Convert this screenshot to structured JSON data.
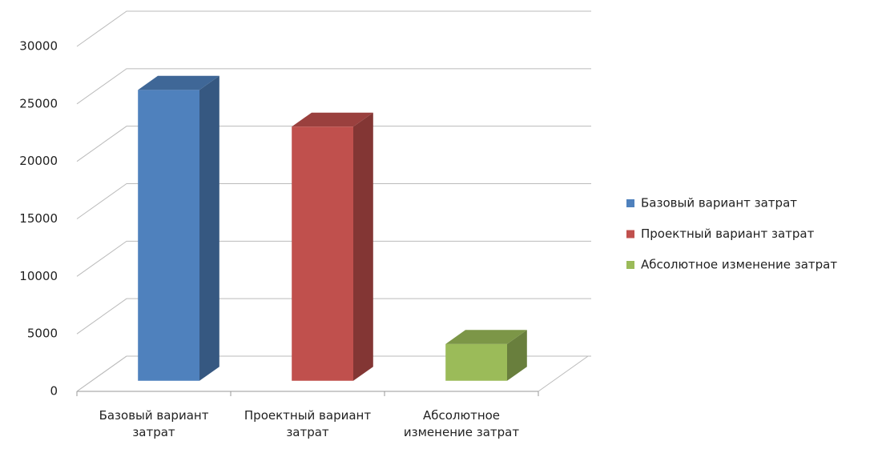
{
  "chart_data": {
    "type": "bar3d",
    "categories": [
      "Базовый вариант затрат",
      "Проектный вариант затрат",
      "Абсолютное изменение затрат"
    ],
    "values": [
      25300,
      22100,
      3200
    ],
    "colors": [
      "#4f81bd",
      "#c0504d",
      "#9bbb59"
    ],
    "ylim": [
      0,
      30000
    ],
    "yticks": [
      0,
      5000,
      10000,
      15000,
      20000,
      25000,
      30000
    ],
    "grid": true,
    "legend": "right"
  }
}
